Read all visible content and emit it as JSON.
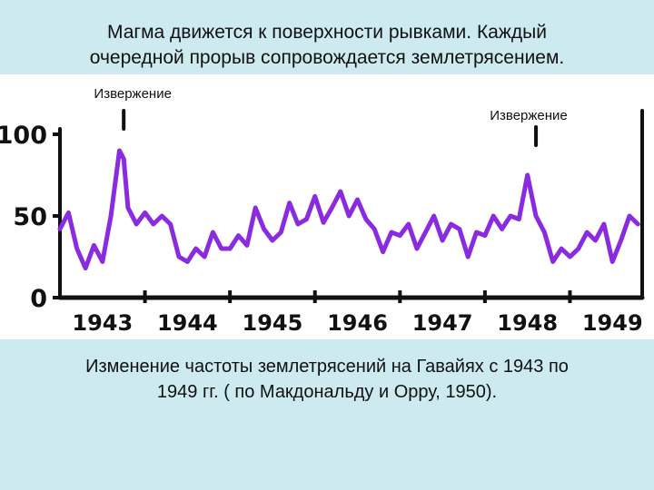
{
  "slide": {
    "title_line1": "Магма движется к поверхности рывками. Каждый",
    "title_line2": "очередной прорыв сопровождается землетрясением.",
    "caption_line1": "Изменение частоты землетрясений на Гавайях с 1943 по",
    "caption_line2": "1949 гг. ( по Макдональду и Орру, 1950)."
  },
  "chart_data": {
    "type": "line",
    "title": "",
    "xlabel": "",
    "ylabel": "",
    "xlim": [
      1943,
      1949.85
    ],
    "ylim": [
      0,
      100
    ],
    "y_ticks": [
      "100",
      "50",
      "0"
    ],
    "x_tick_labels": [
      "1943",
      "1944",
      "1945",
      "1946",
      "1947",
      "1948",
      "1949"
    ],
    "grid": false,
    "line_color": "#8b2be0",
    "series": [
      {
        "x": [
          1943.0,
          1943.1,
          1943.2,
          1943.3,
          1943.4,
          1943.5,
          1943.6,
          1943.7,
          1943.75,
          1943.8,
          1943.9,
          1944.0,
          1944.1,
          1944.2,
          1944.3,
          1944.4,
          1944.5,
          1944.6,
          1944.7,
          1944.8,
          1944.9,
          1945.0,
          1945.1,
          1945.2,
          1945.3,
          1945.4,
          1945.5,
          1945.6,
          1945.7,
          1945.8,
          1945.9,
          1946.0,
          1946.1,
          1946.2,
          1946.3,
          1946.4,
          1946.5,
          1946.6,
          1946.7,
          1946.8,
          1946.9,
          1947.0,
          1947.1,
          1947.2,
          1947.3,
          1947.4,
          1947.5,
          1947.6,
          1947.7,
          1947.8,
          1947.9,
          1948.0,
          1948.1,
          1948.2,
          1948.3,
          1948.4,
          1948.5,
          1948.6,
          1948.7,
          1948.8,
          1948.9,
          1949.0,
          1949.1,
          1949.2,
          1949.3,
          1949.4,
          1949.5,
          1949.6,
          1949.7,
          1949.8
        ],
        "y": [
          42,
          52,
          30,
          18,
          32,
          22,
          50,
          90,
          85,
          55,
          45,
          52,
          45,
          50,
          45,
          25,
          22,
          30,
          25,
          40,
          30,
          30,
          38,
          32,
          55,
          42,
          35,
          40,
          58,
          45,
          48,
          62,
          46,
          55,
          65,
          50,
          60,
          48,
          42,
          28,
          40,
          38,
          45,
          30,
          40,
          50,
          35,
          45,
          42,
          25,
          40,
          38,
          50,
          42,
          50,
          48,
          75,
          50,
          40,
          22,
          30,
          25,
          30,
          40,
          35,
          45,
          22,
          35,
          50,
          45
        ]
      }
    ],
    "annotations": [
      {
        "text": "Извержение",
        "x": 1943.75,
        "arrow": "|"
      },
      {
        "text": "Извержение",
        "x": 1948.6,
        "arrow": "|"
      }
    ]
  }
}
